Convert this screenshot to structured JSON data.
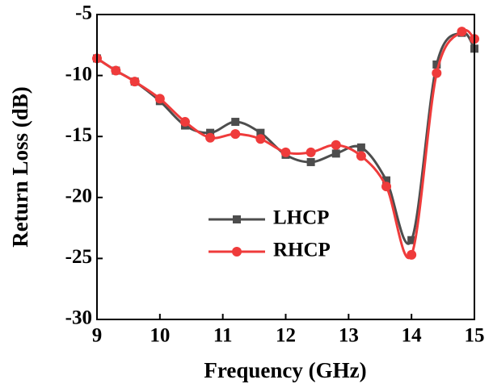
{
  "chart_data": {
    "type": "line",
    "x_label": "Frequency (GHz)",
    "y_label": "Return Loss (dB)",
    "x": [
      9,
      9.3,
      9.6,
      10,
      10.4,
      10.8,
      11.2,
      11.6,
      12,
      12.4,
      12.8,
      13.2,
      13.6,
      14,
      14.4,
      14.8,
      15
    ],
    "series": [
      {
        "name": "LHCP",
        "color": "#4d4d4d",
        "marker": "square",
        "values": [
          -8.6,
          -9.6,
          -10.5,
          -12.1,
          -14.1,
          -14.7,
          -13.8,
          -14.7,
          -16.5,
          -17.1,
          -16.4,
          -15.9,
          -18.6,
          -23.5,
          -9.1,
          -6.5,
          -7.8
        ]
      },
      {
        "name": "RHCP",
        "color": "#ef3b3b",
        "marker": "circle",
        "values": [
          -8.6,
          -9.6,
          -10.5,
          -11.9,
          -13.8,
          -15.1,
          -14.8,
          -15.2,
          -16.3,
          -16.3,
          -15.7,
          -16.6,
          -19.1,
          -24.7,
          -9.8,
          -6.4,
          -7.0
        ]
      }
    ],
    "xlim": [
      9,
      15
    ],
    "xticks": [
      9,
      10,
      11,
      12,
      13,
      14,
      15
    ],
    "ylim": [
      -30,
      -5
    ],
    "yticks": [
      -30,
      -25,
      -20,
      -15,
      -10,
      -5
    ],
    "legend_position": "lower center",
    "grid": false
  }
}
